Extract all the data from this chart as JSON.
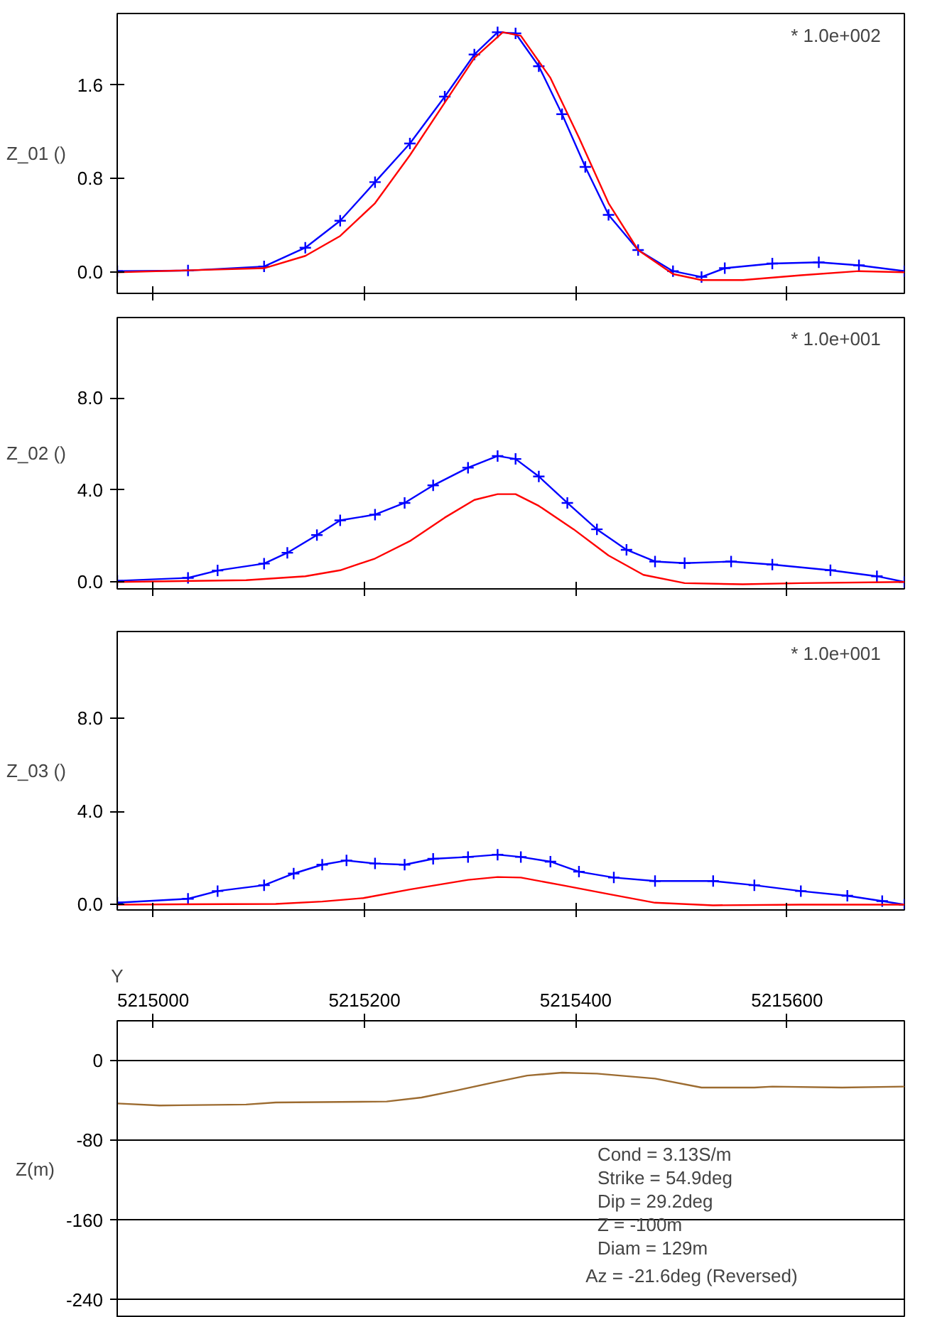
{
  "chart_data": [
    {
      "type": "line",
      "ylabel": "Z_01 ()",
      "xlim": [
        5214966,
        5215711
      ],
      "ylim": [
        -0.18,
        2.21
      ],
      "xticks": [
        {
          "value": 5215000,
          "label": null
        },
        {
          "value": 5215200,
          "label": null
        },
        {
          "value": 5215400,
          "label": null
        },
        {
          "value": 5215600,
          "label": null
        }
      ],
      "yticks": [
        {
          "value": 0,
          "label": "0.0"
        },
        {
          "value": 0.8,
          "label": "0.8"
        },
        {
          "value": 1.6,
          "label": "1.6"
        }
      ],
      "tick_labels": "y",
      "grid": false,
      "annotations": [
        "* 1.0e+002"
      ],
      "series": [
        {
          "color": "#0000ff",
          "marker": "cross",
          "x": [
            5214966,
            5215033,
            5215105,
            5215144,
            5215177,
            5215210,
            5215243,
            5215276,
            5215304,
            5215326,
            5215343,
            5215365,
            5215387,
            5215409,
            5215431,
            5215459,
            5215492,
            5215519,
            5215541,
            5215586,
            5215630,
            5215668,
            5215711
          ],
          "values": [
            0.01,
            0.015,
            0.05,
            0.21,
            0.44,
            0.77,
            1.1,
            1.5,
            1.86,
            2.05,
            2.04,
            1.76,
            1.35,
            0.9,
            0.49,
            0.19,
            0.01,
            -0.04,
            0.035,
            0.075,
            0.085,
            0.06,
            0.01
          ]
        },
        {
          "color": "#ff0000",
          "marker": "none",
          "x": [
            5214966,
            5215105,
            5215144,
            5215177,
            5215210,
            5215243,
            5215276,
            5215304,
            5215331,
            5215348,
            5215376,
            5215403,
            5215431,
            5215459,
            5215492,
            5215519,
            5215558,
            5215613,
            5215668,
            5215711
          ],
          "values": [
            0,
            0.035,
            0.14,
            0.31,
            0.59,
            1.0,
            1.45,
            1.83,
            2.05,
            2.02,
            1.66,
            1.15,
            0.59,
            0.19,
            -0.015,
            -0.066,
            -0.066,
            -0.025,
            0.01,
            0
          ]
        }
      ]
    },
    {
      "type": "line",
      "ylabel": "Z_02 ()",
      "xlim": [
        5214966,
        5215711
      ],
      "ylim": [
        -0.3,
        11.5
      ],
      "xticks": [
        {
          "value": 5215000,
          "label": null
        },
        {
          "value": 5215200,
          "label": null
        },
        {
          "value": 5215400,
          "label": null
        },
        {
          "value": 5215600,
          "label": null
        }
      ],
      "yticks": [
        {
          "value": 0,
          "label": "0.0"
        },
        {
          "value": 4,
          "label": "4.0"
        },
        {
          "value": 8,
          "label": "8.0"
        }
      ],
      "tick_labels": "y",
      "grid": false,
      "annotations": [
        "* 1.0e+001"
      ],
      "series": [
        {
          "color": "#0000ff",
          "marker": "cross",
          "x": [
            5214966,
            5215033,
            5215061,
            5215105,
            5215127,
            5215155,
            5215177,
            5215210,
            5215238,
            5215265,
            5215298,
            5215326,
            5215343,
            5215365,
            5215392,
            5215420,
            5215448,
            5215475,
            5215503,
            5215547,
            5215586,
            5215641,
            5215685,
            5215711
          ],
          "values": [
            0.05,
            0.18,
            0.5,
            0.8,
            1.27,
            2.04,
            2.68,
            2.93,
            3.44,
            4.2,
            4.97,
            5.48,
            5.35,
            4.59,
            3.44,
            2.29,
            1.4,
            0.89,
            0.82,
            0.89,
            0.76,
            0.51,
            0.25,
            0
          ]
        },
        {
          "color": "#ff0000",
          "marker": "none",
          "x": [
            5214966,
            5215088,
            5215144,
            5215177,
            5215210,
            5215243,
            5215276,
            5215304,
            5215326,
            5215343,
            5215365,
            5215398,
            5215431,
            5215464,
            5215503,
            5215558,
            5215613,
            5215711
          ],
          "values": [
            0,
            0.08,
            0.25,
            0.51,
            1.02,
            1.78,
            2.8,
            3.57,
            3.82,
            3.82,
            3.31,
            2.29,
            1.15,
            0.31,
            -0.05,
            -0.1,
            -0.05,
            0
          ]
        }
      ]
    },
    {
      "type": "line",
      "ylabel": "Z_03 ()",
      "xlim": [
        5214966,
        5215711
      ],
      "ylim": [
        -0.23,
        11.7
      ],
      "xticks": [
        {
          "value": 5215000,
          "label": null
        },
        {
          "value": 5215200,
          "label": null
        },
        {
          "value": 5215400,
          "label": null
        },
        {
          "value": 5215600,
          "label": null
        }
      ],
      "yticks": [
        {
          "value": 0,
          "label": "0.0"
        },
        {
          "value": 4,
          "label": "4.0"
        },
        {
          "value": 8,
          "label": "8.0"
        }
      ],
      "tick_labels": "y",
      "grid": false,
      "annotations": [
        "* 1.0e+001"
      ],
      "series": [
        {
          "color": "#0000ff",
          "marker": "cross",
          "x": [
            5214966,
            5215033,
            5215061,
            5215105,
            5215133,
            5215160,
            5215183,
            5215210,
            5215238,
            5215265,
            5215298,
            5215326,
            5215348,
            5215376,
            5215403,
            5215436,
            5215475,
            5215530,
            5215569,
            5215613,
            5215657,
            5215690,
            5215711
          ],
          "values": [
            0.08,
            0.25,
            0.58,
            0.83,
            1.33,
            1.71,
            1.89,
            1.76,
            1.71,
            1.96,
            2.04,
            2.14,
            2.04,
            1.84,
            1.41,
            1.16,
            1.01,
            1.01,
            0.83,
            0.58,
            0.38,
            0.15,
            0
          ]
        },
        {
          "color": "#ff0000",
          "marker": "none",
          "x": [
            5214966,
            5215116,
            5215160,
            5215199,
            5215243,
            5215298,
            5215326,
            5215348,
            5215387,
            5215431,
            5215475,
            5215530,
            5215613,
            5215711
          ],
          "values": [
            0,
            0.03,
            0.13,
            0.28,
            0.65,
            1.06,
            1.18,
            1.16,
            0.83,
            0.45,
            0.08,
            -0.03,
            0,
            0
          ]
        }
      ]
    },
    {
      "type": "line",
      "xlabel": "Y",
      "ylabel": "Z(m)",
      "xlim": [
        5214966,
        5215711
      ],
      "ylim": [
        -258,
        40
      ],
      "xticks": [
        5215000,
        5215200,
        5215400,
        5215600
      ],
      "yticks": [
        0,
        -80,
        -160,
        -240
      ],
      "grid": "y",
      "annotations": [
        "Cond = 3.13S/m",
        "Strike = 54.9deg",
        "Dip = 29.2deg",
        "Z = -100m",
        "Diam = 129m",
        "Az = -21.6deg (Reversed)"
      ],
      "series": [
        {
          "color": "#9c6b30",
          "marker": "none",
          "x": [
            5214966,
            5215006,
            5215088,
            5215116,
            5215221,
            5215254,
            5215287,
            5215326,
            5215354,
            5215387,
            5215420,
            5215475,
            5215519,
            5215569,
            5215586,
            5215652,
            5215711
          ],
          "values": [
            -43,
            -45,
            -44,
            -42,
            -41,
            -37,
            -30,
            -21,
            -15,
            -12,
            -13,
            -18,
            -27,
            -27,
            -26,
            -27,
            -26
          ]
        }
      ]
    }
  ]
}
